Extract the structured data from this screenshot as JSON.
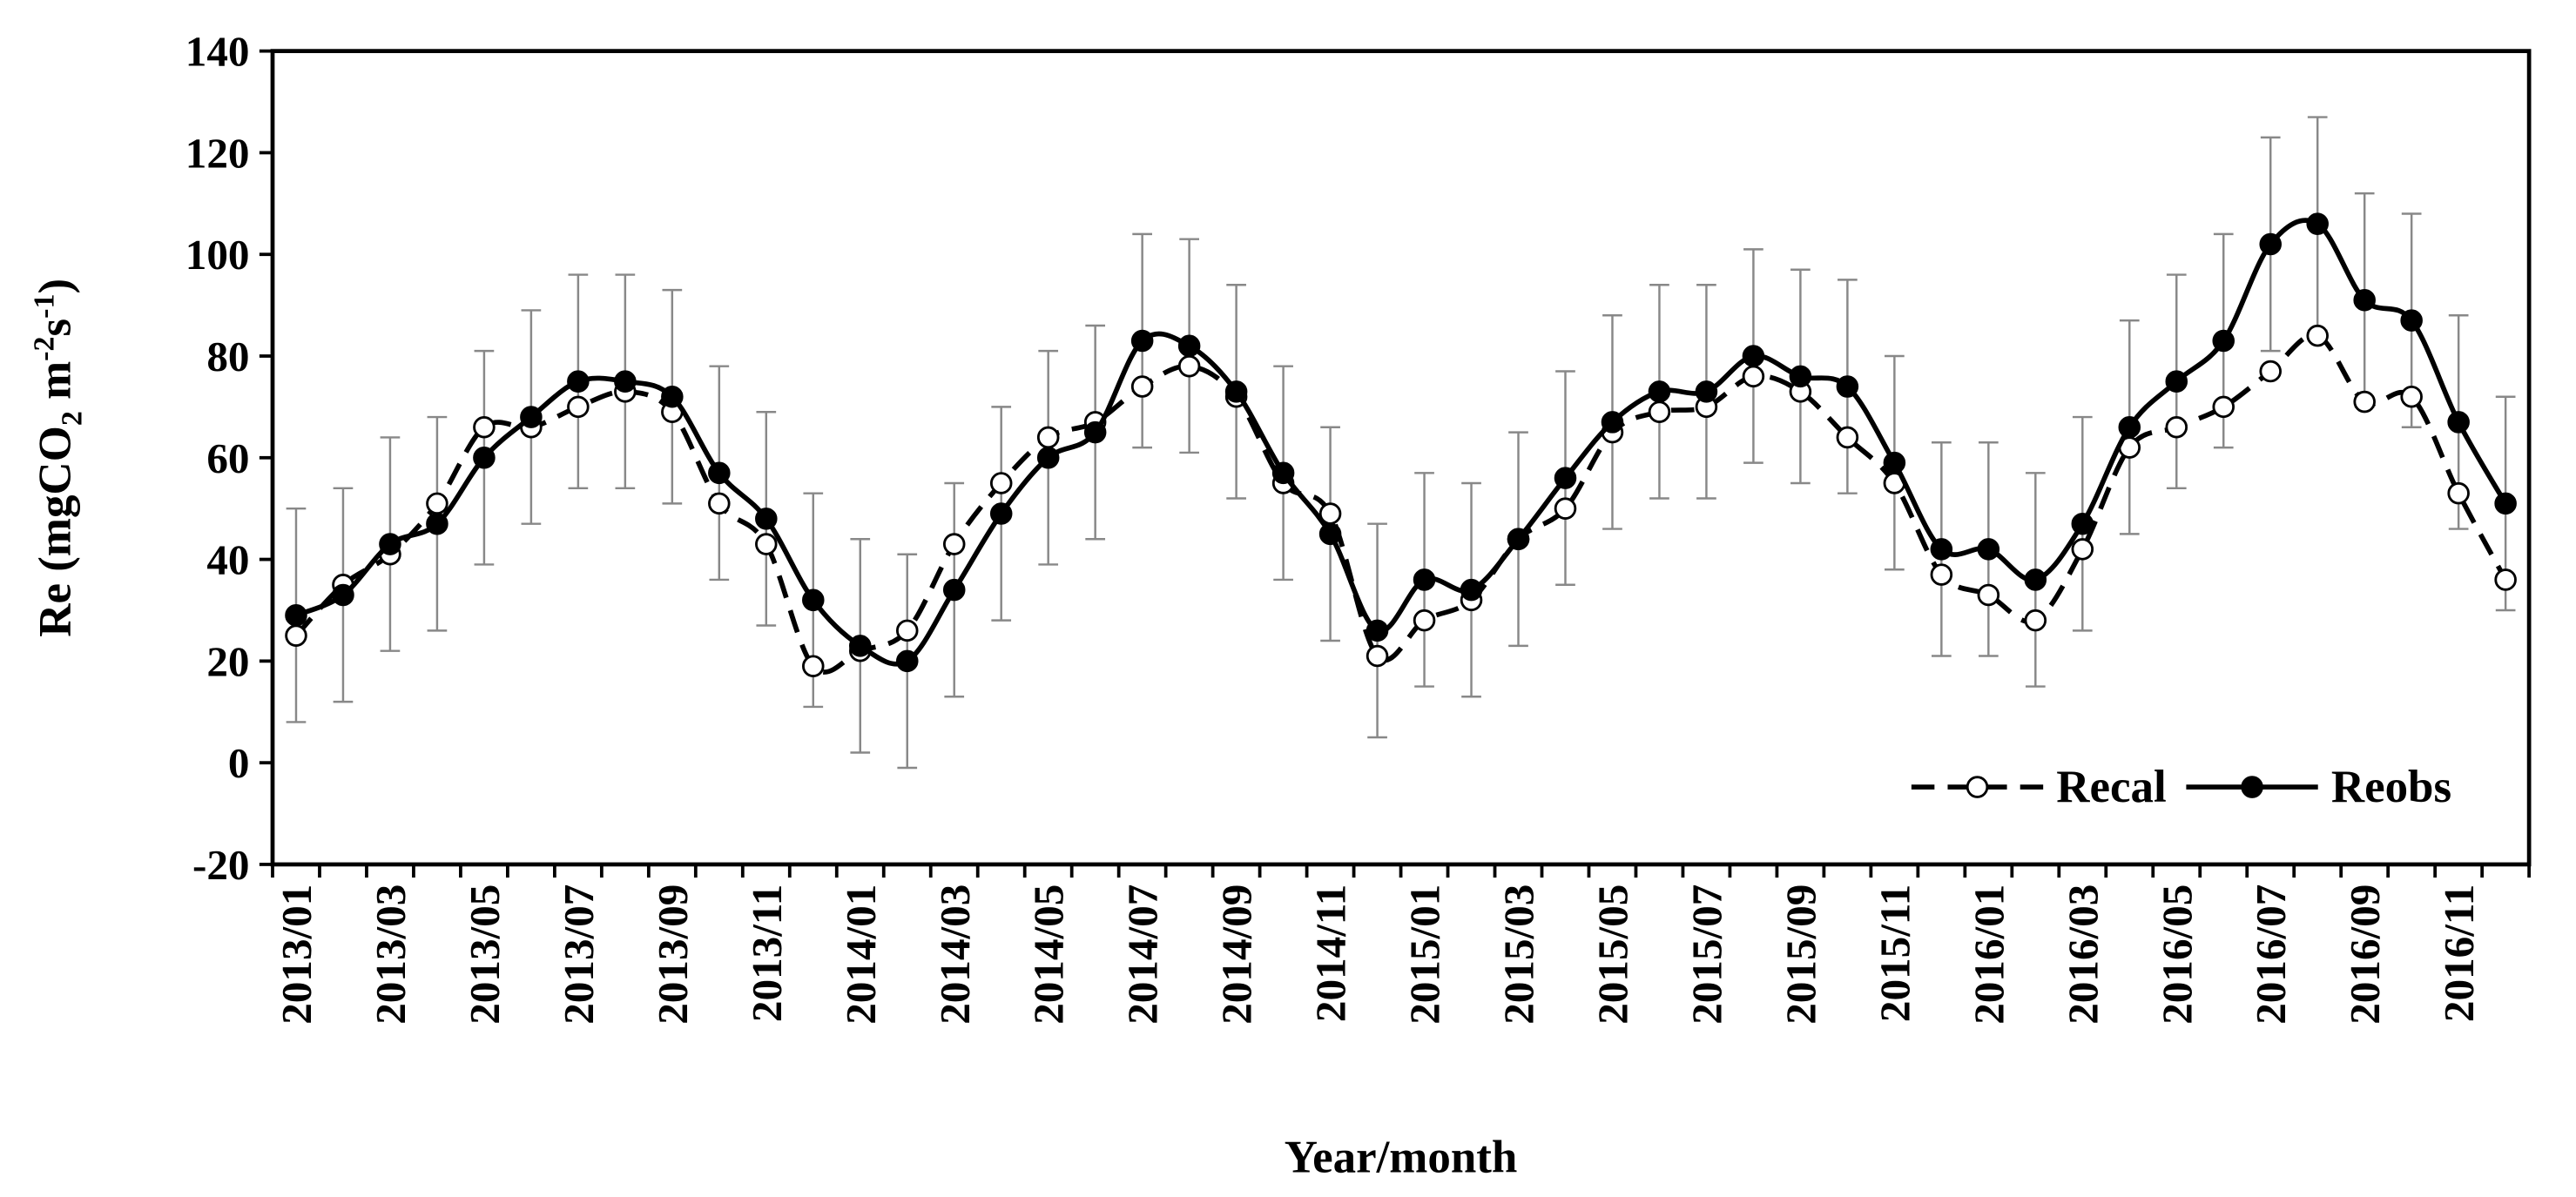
{
  "chart_data": {
    "type": "line",
    "x_label": "Year/month",
    "y_label": [
      "Re (mgCO",
      "2",
      " m",
      "-2",
      "s",
      "-1",
      ")"
    ],
    "categories": [
      "2013/01",
      null,
      "2013/03",
      null,
      "2013/05",
      null,
      "2013/07",
      null,
      "2013/09",
      null,
      "2013/11",
      null,
      "2014/01",
      null,
      "2014/03",
      null,
      "2014/05",
      null,
      "2014/07",
      null,
      "2014/09",
      null,
      "2014/11",
      null,
      "2015/01",
      null,
      "2015/03",
      null,
      "2015/05",
      null,
      "2015/07",
      null,
      "2015/09",
      null,
      "2015/11",
      null,
      "2016/01",
      null,
      "2016/03",
      null,
      "2016/05",
      null,
      "2016/07",
      null,
      "2016/09",
      null,
      "2016/11",
      null
    ],
    "series": [
      {
        "name": "Recal",
        "color": "#000000",
        "dashed": true,
        "marker": "open",
        "values": [
          25,
          35,
          41,
          51,
          66,
          66,
          70,
          73,
          69,
          51,
          43,
          19,
          22,
          26,
          43,
          55,
          64,
          67,
          74,
          78,
          72,
          55,
          49,
          21,
          28,
          32,
          44,
          50,
          65,
          69,
          70,
          76,
          73,
          64,
          55,
          37,
          33,
          28,
          42,
          62,
          66,
          70,
          77,
          84,
          71,
          72,
          53,
          36
        ]
      },
      {
        "name": "Reobs",
        "color": "#000000",
        "dashed": false,
        "marker": "filled",
        "values": [
          29,
          33,
          43,
          47,
          60,
          68,
          75,
          75,
          72,
          57,
          48,
          32,
          23,
          20,
          34,
          49,
          60,
          65,
          83,
          82,
          73,
          57,
          45,
          26,
          36,
          34,
          44,
          56,
          67,
          73,
          73,
          80,
          76,
          74,
          59,
          42,
          42,
          36,
          47,
          66,
          75,
          83,
          102,
          106,
          91,
          87,
          67,
          51
        ],
        "errors": [
          21,
          21,
          21,
          21,
          21,
          21,
          21,
          21,
          21,
          21,
          21,
          21,
          21,
          21,
          21,
          21,
          21,
          21,
          21,
          21,
          21,
          21,
          21,
          21,
          21,
          21,
          21,
          21,
          21,
          21,
          21,
          21,
          21,
          21,
          21,
          21,
          21,
          21,
          21,
          21,
          21,
          21,
          21,
          21,
          21,
          21,
          21,
          21
        ]
      }
    ],
    "ylim": [
      -20,
      140
    ],
    "yticks": [
      -20,
      0,
      20,
      40,
      60,
      80,
      100,
      120,
      140
    ],
    "grid": false,
    "legend": "lower right"
  }
}
